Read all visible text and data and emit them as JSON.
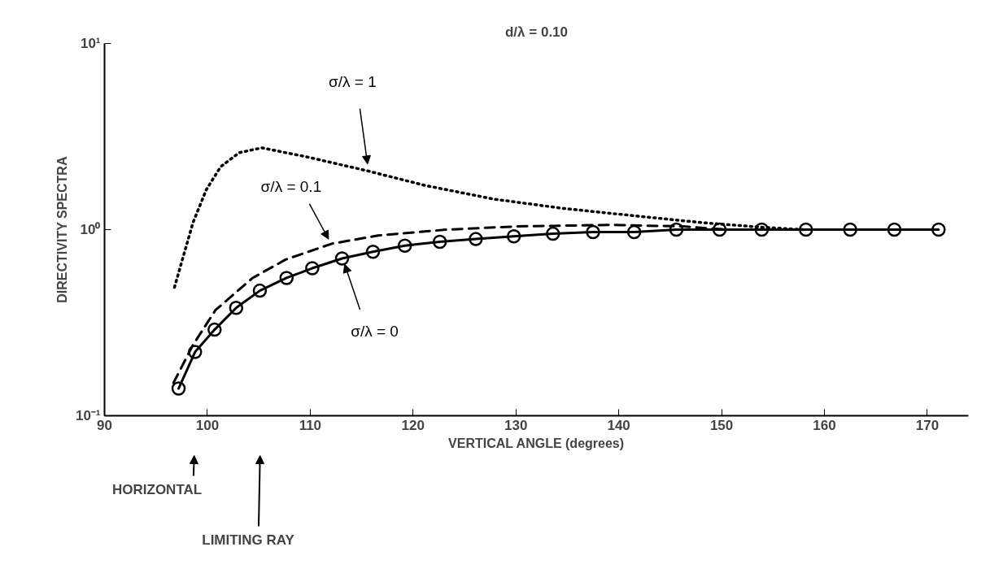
{
  "chart_data": {
    "type": "line",
    "title": "d/λ = 0.10",
    "xlabel": "VERTICAL ANGLE (degrees)",
    "ylabel": "DIRECTIVITY SPECTRA",
    "log": "y",
    "xlim": [
      90,
      174
    ],
    "ylim": [
      0.1,
      10
    ],
    "xticks": [
      90,
      100,
      110,
      120,
      130,
      140,
      150,
      160,
      170
    ],
    "yticks": [
      {
        "value": 0.1,
        "label": "10⁻¹"
      },
      {
        "value": 1,
        "label": "10⁰"
      },
      {
        "value": 10,
        "label": "10¹"
      }
    ],
    "grid": false,
    "legend": false,
    "series": [
      {
        "name": "σ/λ = 1",
        "color": "#000000",
        "line_style": "dotted",
        "marker": "none",
        "x": [
          96.8,
          98.6,
          99.9,
          101.3,
          103.1,
          105.3,
          109.8,
          115.7,
          121.1,
          127.8,
          134.6,
          141.3,
          148.1,
          153.9,
          158
        ],
        "values": [
          0.49,
          1.09,
          1.64,
          2.18,
          2.59,
          2.75,
          2.45,
          2.06,
          1.73,
          1.46,
          1.3,
          1.19,
          1.09,
          1.03,
          1.0
        ]
      },
      {
        "name": "σ/λ = 0.1",
        "color": "#000000",
        "line_style": "dashed",
        "marker": "none",
        "x": [
          96.7,
          98.6,
          100.8,
          104.4,
          107.6,
          112.1,
          116.6,
          123.3,
          130,
          139.1,
          146.3,
          150.5
        ],
        "values": [
          0.15,
          0.24,
          0.37,
          0.55,
          0.69,
          0.84,
          0.93,
          1.0,
          1.04,
          1.06,
          1.04,
          1.0
        ]
      },
      {
        "name": "σ/λ = 0",
        "color": "#000000",
        "line_style": "solid",
        "marker": "circle",
        "x": [
          97.2,
          98.8,
          100.7,
          102.8,
          105.1,
          107.7,
          110.2,
          113.1,
          116.1,
          119.2,
          122.6,
          126.1,
          129.8,
          133.6,
          137.5,
          141.5,
          145.6,
          149.8,
          153.9,
          158.2,
          162.5,
          166.8,
          171.1
        ],
        "values": [
          0.14,
          0.22,
          0.29,
          0.38,
          0.47,
          0.55,
          0.62,
          0.7,
          0.76,
          0.82,
          0.86,
          0.89,
          0.92,
          0.95,
          0.97,
          0.97,
          1.0,
          1.0,
          1.0,
          1.0,
          1.0,
          1.0,
          1.0
        ]
      }
    ],
    "annotations": [
      "HORIZONTAL",
      "LIMITING RAY"
    ]
  }
}
